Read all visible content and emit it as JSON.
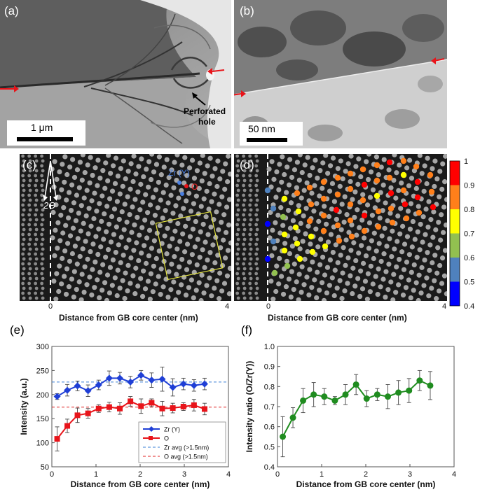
{
  "panels": {
    "a": {
      "label": "(a)",
      "scale": "1 μm",
      "annotation_line1": "Perforated",
      "annotation_line2": "hole"
    },
    "b": {
      "label": "(b)",
      "scale": "50 nm"
    },
    "c": {
      "label": "(c)",
      "atom_zr": "Zr (Y)",
      "atom_o": "O",
      "angle": "2Θ",
      "xlabel": "Distance from GB core center (nm)",
      "tick0": "0",
      "tick4": "4"
    },
    "d": {
      "label": "(d)",
      "xlabel": "Distance from GB core center (nm)",
      "tick0": "0",
      "tick4": "4"
    },
    "e": {
      "label": "(e)"
    },
    "f": {
      "label": "(f)"
    }
  },
  "colorbar": {
    "ticks": [
      "1",
      "0.9",
      "0.8",
      "0.7",
      "0.6",
      "0.5",
      "0.4"
    ],
    "colors": [
      "#ff0000",
      "#ff7f1a",
      "#ffff00",
      "#92c050",
      "#4f81bd",
      "#0000ff"
    ]
  },
  "chart_data": [
    {
      "id": "e",
      "type": "line",
      "title": "",
      "xlabel": "Distance from GB core center (nm)",
      "ylabel": "Intensity (a.u.)",
      "xlim": [
        0,
        4
      ],
      "ylim": [
        50,
        300
      ],
      "xticks": [
        0,
        1,
        2,
        3,
        4
      ],
      "yticks": [
        50,
        100,
        150,
        200,
        250,
        300
      ],
      "series": [
        {
          "name": "Zr (Y)",
          "color": "#1f3fd6",
          "marker": "diamond",
          "x": [
            0.12,
            0.35,
            0.58,
            0.82,
            1.06,
            1.3,
            1.54,
            1.78,
            2.02,
            2.26,
            2.5,
            2.74,
            2.98,
            3.22,
            3.46
          ],
          "y": [
            196,
            209,
            218,
            208,
            220,
            234,
            234,
            226,
            240,
            230,
            232,
            215,
            222,
            219,
            222
          ],
          "err": [
            6,
            12,
            10,
            12,
            10,
            15,
            12,
            12,
            10,
            15,
            25,
            18,
            12,
            12,
            12
          ]
        },
        {
          "name": "O",
          "color": "#e8141a",
          "marker": "square",
          "x": [
            0.12,
            0.35,
            0.58,
            0.82,
            1.06,
            1.3,
            1.54,
            1.78,
            2.02,
            2.26,
            2.5,
            2.74,
            2.98,
            3.22,
            3.46
          ],
          "y": [
            108,
            135,
            157,
            161,
            171,
            174,
            171,
            186,
            176,
            183,
            171,
            172,
            175,
            178,
            170
          ],
          "err": [
            25,
            14,
            15,
            10,
            8,
            10,
            12,
            10,
            15,
            8,
            15,
            10,
            8,
            12,
            12
          ]
        }
      ],
      "ref_lines": [
        {
          "name": "Zr avg (>1.5nm)",
          "y": 226,
          "color": "#3a7fd5",
          "style": "dashed"
        },
        {
          "name": "O avg (>1.5nm)",
          "y": 174,
          "color": "#e02020",
          "style": "dashed"
        }
      ],
      "legend": "bottom-right"
    },
    {
      "id": "f",
      "type": "line",
      "title": "",
      "xlabel": "Distance from GB core center (nm)",
      "ylabel": "Intensity ratio (O/Zr(Y))",
      "xlim": [
        0,
        4
      ],
      "ylim": [
        0.4,
        1.0
      ],
      "xticks": [
        0,
        1,
        2,
        3,
        4
      ],
      "yticks": [
        0.4,
        0.5,
        0.6,
        0.7,
        0.8,
        0.9,
        1.0
      ],
      "series": [
        {
          "name": "O/Zr(Y)",
          "color": "#1f8c1f",
          "marker": "circle",
          "x": [
            0.12,
            0.35,
            0.58,
            0.82,
            1.06,
            1.3,
            1.54,
            1.78,
            2.02,
            2.26,
            2.5,
            2.74,
            2.98,
            3.22,
            3.46
          ],
          "y": [
            0.55,
            0.645,
            0.73,
            0.76,
            0.75,
            0.73,
            0.76,
            0.81,
            0.74,
            0.76,
            0.75,
            0.77,
            0.78,
            0.83,
            0.805
          ],
          "err": [
            0.1,
            0.05,
            0.06,
            0.06,
            0.04,
            0.02,
            0.05,
            0.05,
            0.04,
            0.03,
            0.06,
            0.06,
            0.06,
            0.05,
            0.07
          ]
        }
      ]
    }
  ]
}
